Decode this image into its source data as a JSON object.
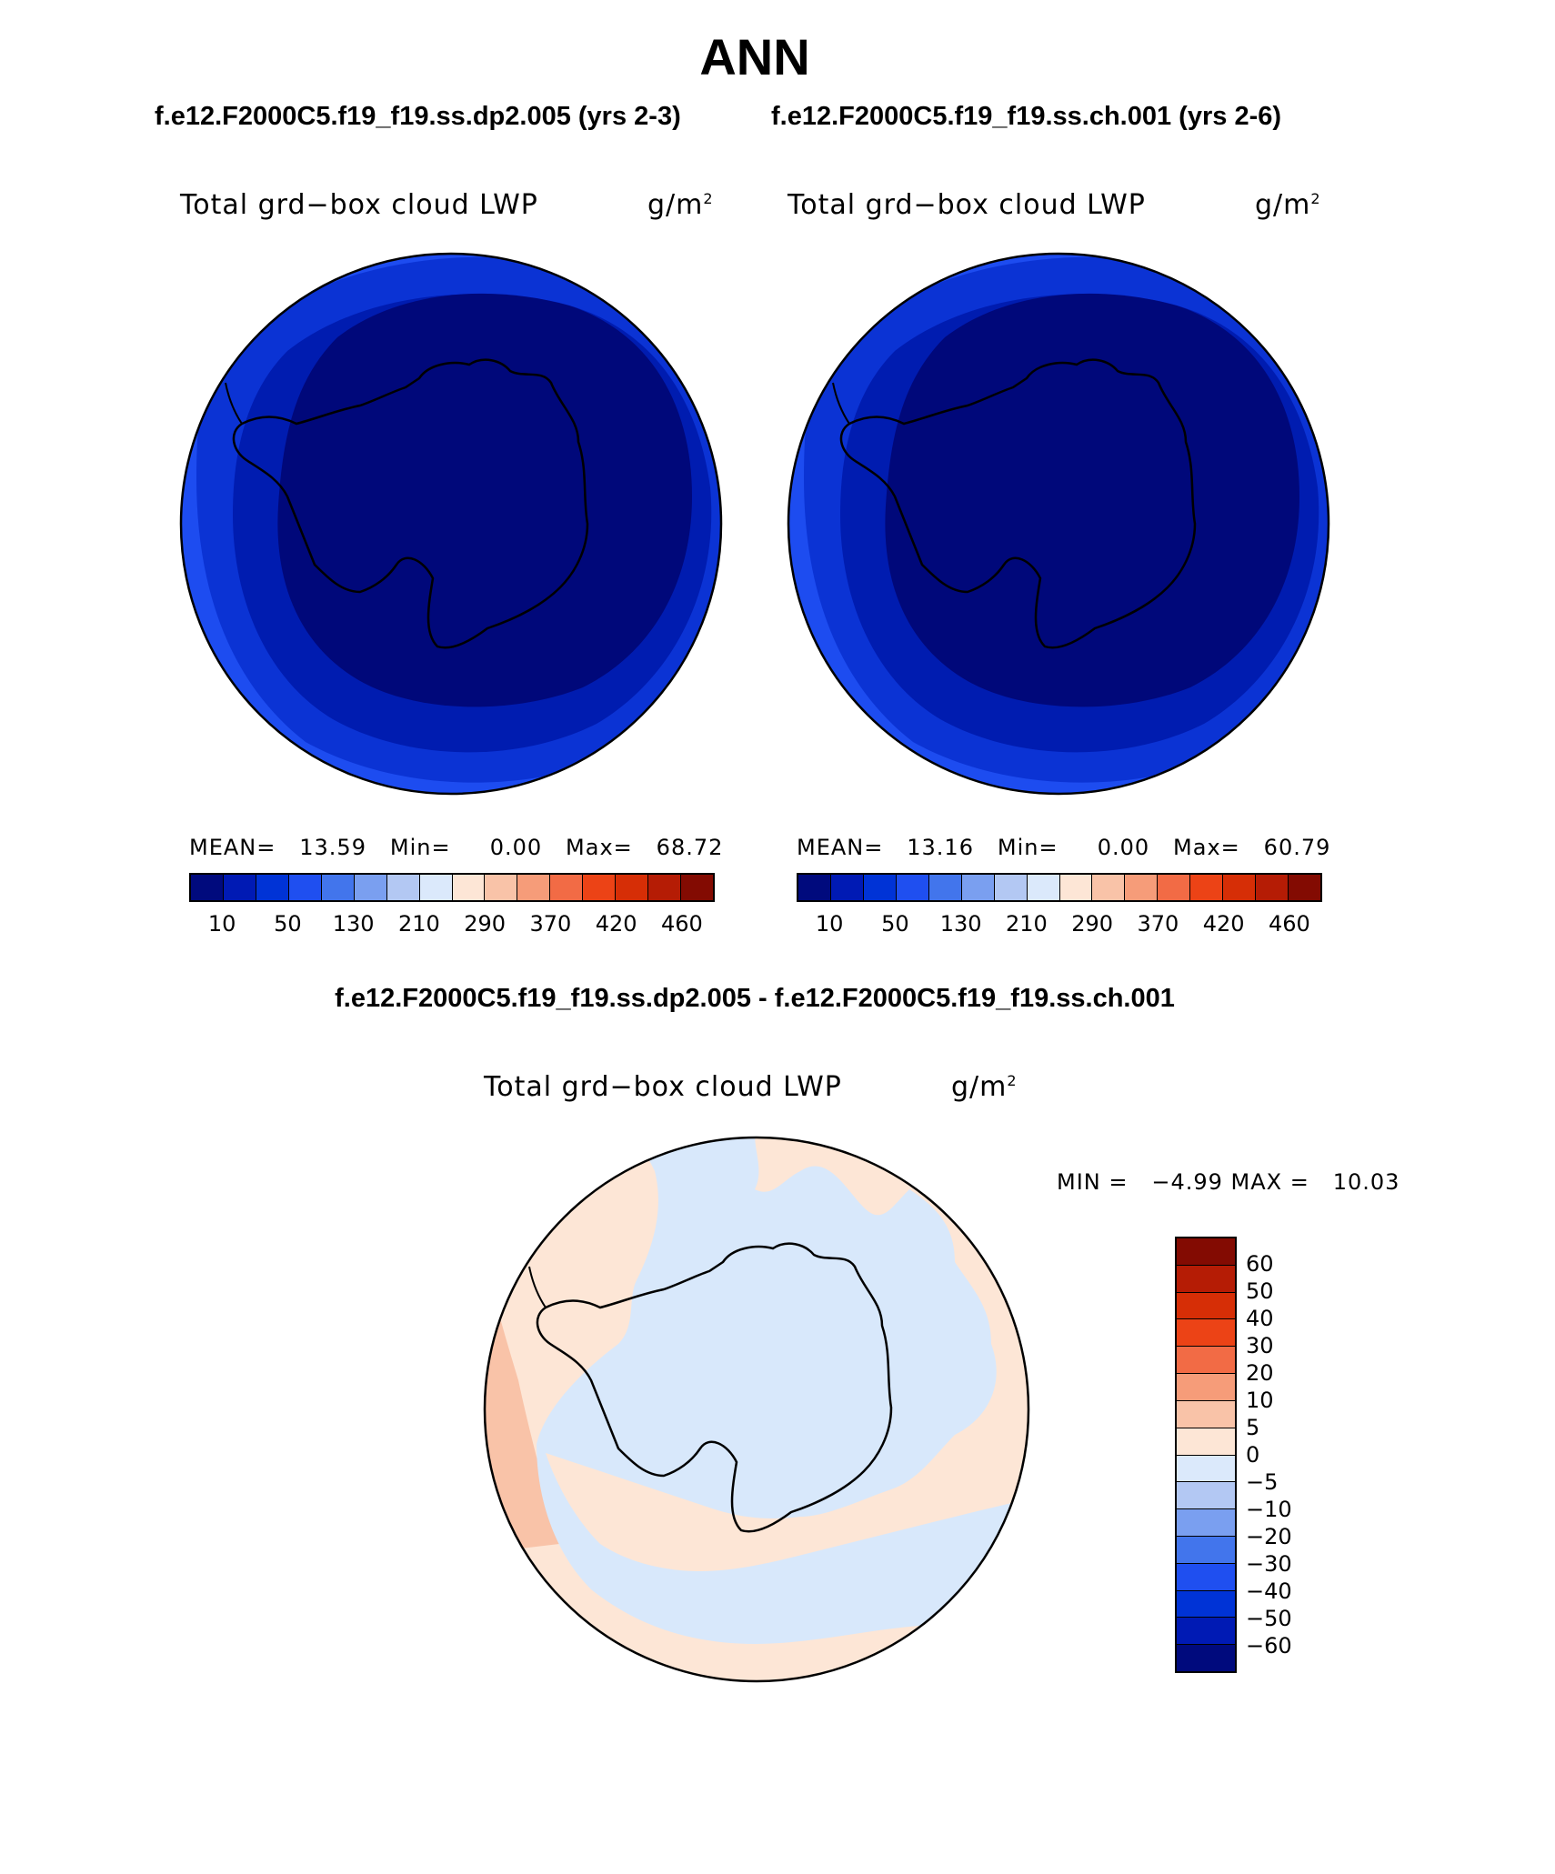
{
  "title": "ANN",
  "subtitle_left": "f.e12.F2000C5.f19_f19.ss.dp2.005 (yrs 2-3)",
  "subtitle_right": "f.e12.F2000C5.f19_f19.ss.ch.001 (yrs 2-6)",
  "diff_title": "f.e12.F2000C5.f19_f19.ss.dp2.005 - f.e12.F2000C5.f19_f19.ss.ch.001",
  "panel_left": {
    "variable": "Total grd−box cloud LWP",
    "units_base": "g/m",
    "units_exp": "2",
    "mean_label": "MEAN=",
    "mean": "13.59",
    "min_label": "Min=",
    "min": "0.00",
    "max_label": "Max=",
    "max": "68.72"
  },
  "panel_right": {
    "variable": "Total grd−box cloud LWP",
    "units_base": "g/m",
    "units_exp": "2",
    "mean_label": "MEAN=",
    "mean": "13.16",
    "min_label": "Min=",
    "min": "0.00",
    "max_label": "Max=",
    "max": "60.79"
  },
  "panel_diff": {
    "variable": "Total grd−box cloud LWP",
    "units_base": "g/m",
    "units_exp": "2",
    "minmax": "MIN =   −4.99 MAX =   10.03"
  },
  "colorbar_main": {
    "colors": [
      "#000a7d",
      "#001ab4",
      "#0033d6",
      "#1f4ff0",
      "#4275ec",
      "#7a9ff0",
      "#b3c8f3",
      "#dbe9fb",
      "#fde6d6",
      "#f9c3a8",
      "#f69c79",
      "#f26b45",
      "#ec4316",
      "#d62e06",
      "#b51c05",
      "#830b02"
    ],
    "labels": [
      "10",
      "50",
      "130",
      "210",
      "290",
      "370",
      "420",
      "460"
    ]
  },
  "colorbar_diff": {
    "colors": [
      "#830b02",
      "#b51c05",
      "#d62e06",
      "#ec4316",
      "#f26b45",
      "#f69c79",
      "#f9c3a8",
      "#fde6d6",
      "#dbe9fb",
      "#b3c8f3",
      "#7a9ff0",
      "#4275ec",
      "#1f4ff0",
      "#0033d6",
      "#001ab4",
      "#000a7d"
    ],
    "labels": [
      "60",
      "50",
      "40",
      "30",
      "20",
      "10",
      "5",
      "0",
      "−5",
      "−10",
      "−20",
      "−30",
      "−40",
      "−50",
      "−60"
    ]
  },
  "map_colors": {
    "dark": "#00087a",
    "mid": "#001cb0",
    "outer": "#0b33d4",
    "edge": "#1d4cf0",
    "diff_pos": "#fde6d6",
    "diff_neg": "#d8e8fb",
    "diff_pos2": "#f9c3a8"
  }
}
